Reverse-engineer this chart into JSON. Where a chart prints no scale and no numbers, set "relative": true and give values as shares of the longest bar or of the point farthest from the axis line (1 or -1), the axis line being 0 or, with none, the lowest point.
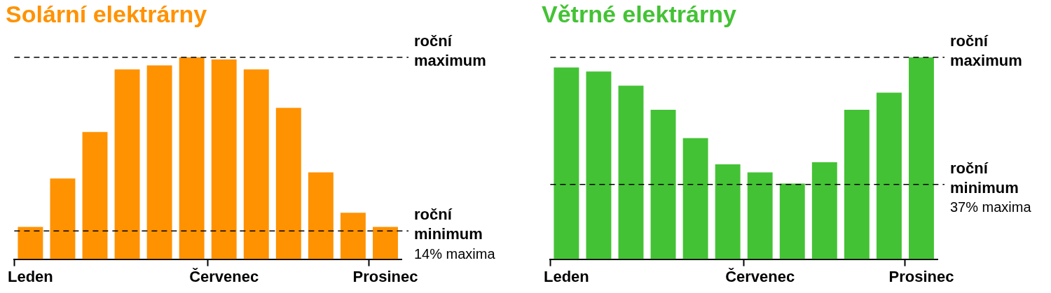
{
  "chart_data": [
    {
      "type": "bar",
      "title": "Solární elektrárny",
      "relative": true,
      "categories": [
        "Leden",
        null,
        null,
        null,
        null,
        null,
        "Červenec",
        null,
        null,
        null,
        null,
        "Prosinec"
      ],
      "values": [
        0.16,
        0.4,
        0.63,
        0.94,
        0.96,
        1.0,
        0.99,
        0.94,
        0.75,
        0.43,
        0.23,
        0.16
      ],
      "color": "#ff9200",
      "ref_lines": [
        {
          "axis": "y",
          "value": 1.0,
          "label": "roční maximum",
          "line_style": "dashed"
        },
        {
          "axis": "y",
          "value": 0.14,
          "label": "roční minimum",
          "line_style": "dashed"
        }
      ],
      "annotations": [
        "14% maxima"
      ],
      "legend": false
    },
    {
      "type": "bar",
      "title": "Větrné elektrárny",
      "relative": true,
      "categories": [
        "Leden",
        null,
        null,
        null,
        null,
        null,
        "Červenec",
        null,
        null,
        null,
        null,
        "Prosinec"
      ],
      "values": [
        0.95,
        0.93,
        0.86,
        0.74,
        0.6,
        0.47,
        0.43,
        0.375,
        0.48,
        0.74,
        0.825,
        1.0
      ],
      "color": "#44c235",
      "ref_lines": [
        {
          "axis": "y",
          "value": 1.0,
          "label": "roční maximum",
          "line_style": "dashed"
        },
        {
          "axis": "y",
          "value": 0.37,
          "label": "roční minimum",
          "line_style": "dashed"
        }
      ],
      "annotations": [
        "37% maxima"
      ],
      "legend": false
    }
  ]
}
